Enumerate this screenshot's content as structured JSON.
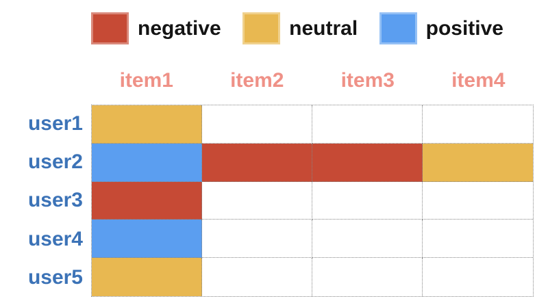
{
  "legend": {
    "items": [
      {
        "label": "negative",
        "color": "#c64a35"
      },
      {
        "label": "neutral",
        "color": "#e8b851"
      },
      {
        "label": "positive",
        "color": "#5b9ef0"
      }
    ]
  },
  "colors": {
    "negative": "#c64a35",
    "neutral": "#e8b851",
    "positive": "#5b9ef0",
    "empty": "#ffffff",
    "header_text": "#ef9187",
    "row_label_text": "#3c73b7",
    "legend_text": "#141414",
    "grid_border": "#858585"
  },
  "chart_data": {
    "type": "heatmap",
    "x_categories": [
      "item1",
      "item2",
      "item3",
      "item4"
    ],
    "y_categories": [
      "user1",
      "user2",
      "user3",
      "user4",
      "user5"
    ],
    "values": [
      [
        "neutral",
        null,
        null,
        null
      ],
      [
        "positive",
        "negative",
        "negative",
        "neutral"
      ],
      [
        "negative",
        null,
        null,
        null
      ],
      [
        "positive",
        null,
        null,
        null
      ],
      [
        "neutral",
        null,
        null,
        null
      ]
    ],
    "legend": [
      "negative",
      "neutral",
      "positive"
    ],
    "legend_position": "top",
    "grid": true,
    "grid_style": "dotted",
    "title": "",
    "xlabel": "",
    "ylabel": ""
  }
}
